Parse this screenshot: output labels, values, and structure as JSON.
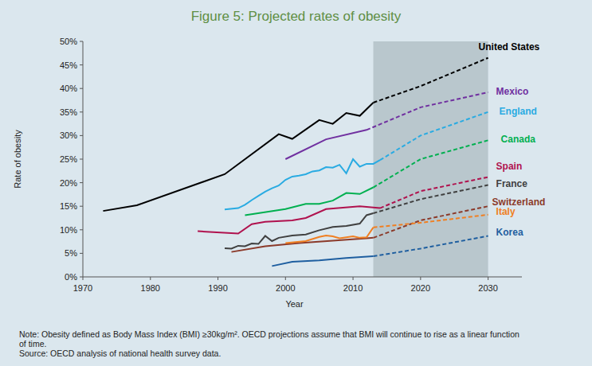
{
  "chart_data": {
    "type": "line",
    "title": "Figure 5: Projected rates of obesity",
    "x_label": "Year",
    "y_label": "Rate of obesity",
    "xlim": [
      1970,
      2035
    ],
    "xticks": [
      1970,
      1980,
      1990,
      2000,
      2010,
      2020,
      2030
    ],
    "ylim": [
      0,
      50
    ],
    "yticks": [
      {
        "value": 0,
        "label": "0%"
      },
      {
        "value": 5,
        "label": "5%"
      },
      {
        "value": 10,
        "label": "10%"
      },
      {
        "value": 15,
        "label": "15%"
      },
      {
        "value": 20,
        "label": "20%"
      },
      {
        "value": 25,
        "label": "25%"
      },
      {
        "value": 30,
        "label": "30%"
      },
      {
        "value": 35,
        "label": "35%"
      },
      {
        "value": 40,
        "label": "40%"
      },
      {
        "value": 45,
        "label": "45%"
      },
      {
        "value": 50,
        "label": "50%"
      }
    ],
    "grid": false,
    "shaded_region": {
      "x": [
        2013,
        2030
      ]
    },
    "series": [
      {
        "name": "United States",
        "color": "#000000",
        "line_style": "solid",
        "x": [
          1973,
          1978,
          1991,
          1999,
          2001,
          2005,
          2007,
          2009,
          2011,
          2013
        ],
        "values": [
          14.0,
          15.2,
          21.8,
          30.3,
          29.3,
          33.3,
          32.5,
          34.8,
          34.2,
          37.0
        ],
        "projection": {
          "line_style": "dashed",
          "x": [
            2013,
            2020,
            2030
          ],
          "values": [
            37.0,
            40.5,
            46.5
          ]
        }
      },
      {
        "name": "Mexico",
        "color": "#7030a0",
        "line_style": "solid",
        "x": [
          2000,
          2006,
          2012
        ],
        "values": [
          25.0,
          29.2,
          31.2
        ],
        "projection": {
          "line_style": "dashed",
          "x": [
            2012,
            2020,
            2030
          ],
          "values": [
            31.2,
            36.0,
            39.2
          ]
        }
      },
      {
        "name": "England",
        "color": "#29abe2",
        "line_style": "solid",
        "x": [
          1991,
          1993,
          1994,
          1995,
          1996,
          1997,
          1998,
          1999,
          2000,
          2001,
          2002,
          2003,
          2004,
          2005,
          2006,
          2007,
          2008,
          2009,
          2010,
          2011,
          2012,
          2013,
          2014
        ],
        "values": [
          14.3,
          14.6,
          15.3,
          16.3,
          17.2,
          18.1,
          18.8,
          19.4,
          20.6,
          21.3,
          21.5,
          21.8,
          22.4,
          22.6,
          23.3,
          23.2,
          23.8,
          22.0,
          25.0,
          23.4,
          24.0,
          24.0,
          24.8
        ],
        "projection": {
          "line_style": "dashed",
          "x": [
            2014,
            2020,
            2030
          ],
          "values": [
            24.8,
            30.0,
            35.0
          ]
        }
      },
      {
        "name": "Canada",
        "color": "#00b050",
        "line_style": "solid",
        "x": [
          1994,
          2000,
          2003,
          2005,
          2007,
          2009,
          2011,
          2013
        ],
        "values": [
          13.1,
          14.4,
          15.5,
          15.5,
          16.2,
          17.8,
          17.6,
          19.0
        ],
        "projection": {
          "line_style": "dashed",
          "x": [
            2013,
            2020,
            2030
          ],
          "values": [
            19.0,
            25.0,
            29.0
          ]
        }
      },
      {
        "name": "Spain",
        "color": "#b0124e",
        "line_style": "solid",
        "x": [
          1987,
          1993,
          1995,
          1997,
          2001,
          2003,
          2006,
          2011,
          2014
        ],
        "values": [
          9.7,
          9.2,
          11.2,
          11.7,
          12.0,
          12.5,
          14.4,
          15.0,
          14.6
        ],
        "projection": {
          "line_style": "dashed",
          "x": [
            2014,
            2020,
            2030
          ],
          "values": [
            14.6,
            18.2,
            21.2
          ]
        }
      },
      {
        "name": "France",
        "color": "#404040",
        "line_style": "solid",
        "x": [
          1991,
          1992,
          1993,
          1994,
          1995,
          1996,
          1997,
          1998,
          1999,
          2001,
          2003,
          2005,
          2007,
          2009,
          2011,
          2012,
          2013
        ],
        "values": [
          6.1,
          6.0,
          6.6,
          6.5,
          7.1,
          7.0,
          8.7,
          7.6,
          8.3,
          8.8,
          9.0,
          9.9,
          10.6,
          10.8,
          11.3,
          13.1,
          13.5
        ],
        "projection": {
          "line_style": "dashed",
          "x": [
            2013,
            2020,
            2030
          ],
          "values": [
            13.5,
            16.5,
            19.5
          ]
        }
      },
      {
        "name": "Switzerland",
        "color": "#8b3a2a",
        "line_style": "solid",
        "x": [
          1992,
          1997,
          2002,
          2007,
          2012,
          2013
        ],
        "values": [
          5.3,
          6.5,
          7.2,
          7.7,
          8.2,
          8.3
        ],
        "projection": {
          "line_style": "dashed",
          "x": [
            2013,
            2020,
            2030
          ],
          "values": [
            8.3,
            12.0,
            15.0
          ]
        }
      },
      {
        "name": "Italy",
        "color": "#f07f22",
        "line_style": "solid",
        "x": [
          2000,
          2003,
          2005,
          2006,
          2007,
          2008,
          2010,
          2011,
          2012,
          2013
        ],
        "values": [
          7.2,
          7.6,
          8.5,
          8.8,
          8.6,
          8.2,
          8.6,
          8.3,
          8.4,
          10.5
        ],
        "projection": {
          "line_style": "dashed",
          "x": [
            2013,
            2020,
            2030
          ],
          "values": [
            10.5,
            11.5,
            13.2
          ]
        }
      },
      {
        "name": "Korea",
        "color": "#1f5fa0",
        "line_style": "solid",
        "x": [
          1998,
          2001,
          2005,
          2009,
          2013
        ],
        "values": [
          2.3,
          3.2,
          3.5,
          4.0,
          4.4
        ],
        "projection": {
          "line_style": "dashed",
          "x": [
            2013,
            2020,
            2030
          ],
          "values": [
            4.4,
            6.0,
            8.7
          ]
        }
      }
    ],
    "note": [
      "Note: Obesity defined as Body Mass Index (BMI) ≥30kg/m². OECD projections assume that BMI will continue to rise as a linear function",
      "of time."
    ],
    "source": "Source: OECD analysis of national health survey data."
  }
}
